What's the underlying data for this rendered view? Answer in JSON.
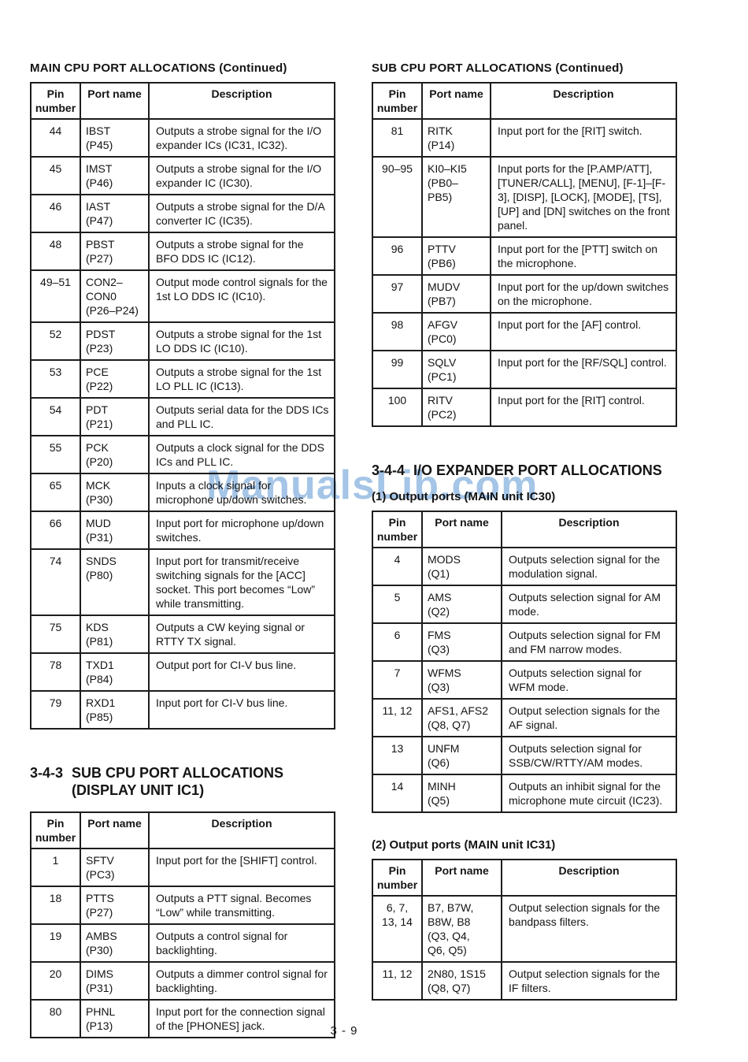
{
  "watermark": {
    "text": "ManualsLib.com",
    "color": "#8fb7e1"
  },
  "footer": {
    "page_number": "3 - 9"
  },
  "table_headers": {
    "pin": "Pin\nnumber",
    "port": "Port name",
    "desc": "Description"
  },
  "left": {
    "main_cpu_title": "MAIN CPU PORT ALLOCATIONS (Continued)",
    "main_cpu_rows": [
      {
        "pin": "44",
        "port": "IBST\n(P45)",
        "desc": "Outputs a strobe signal for the I/O expander ICs (IC31, IC32)."
      },
      {
        "pin": "45",
        "port": "IMST\n(P46)",
        "desc": "Outputs a strobe signal for the I/O expander IC (IC30)."
      },
      {
        "pin": "46",
        "port": "IAST\n(P47)",
        "desc": "Outputs a strobe signal for the D/A converter IC (IC35)."
      },
      {
        "pin": "48",
        "port": "PBST\n(P27)",
        "desc": "Outputs a strobe signal for the BFO DDS IC (IC12)."
      },
      {
        "pin": "49–51",
        "port": "CON2–\nCON0\n(P26–P24)",
        "desc": "Output mode control signals for the 1st LO DDS IC (IC10)."
      },
      {
        "pin": "52",
        "port": "PDST\n(P23)",
        "desc": "Outputs a strobe signal for the 1st LO DDS IC (IC10)."
      },
      {
        "pin": "53",
        "port": "PCE\n(P22)",
        "desc": "Outputs a strobe signal for the 1st LO PLL IC (IC13)."
      },
      {
        "pin": "54",
        "port": "PDT\n(P21)",
        "desc": "Outputs serial data for the DDS ICs and PLL IC."
      },
      {
        "pin": "55",
        "port": "PCK\n(P20)",
        "desc": "Outputs a clock signal for the DDS ICs and PLL IC."
      },
      {
        "pin": "65",
        "port": "MCK\n(P30)",
        "desc": "Inputs a clock signal for microphone up/down switches."
      },
      {
        "pin": "66",
        "port": "MUD\n(P31)",
        "desc": "Input port for microphone up/down switches."
      },
      {
        "pin": "74",
        "port": "SNDS\n(P80)",
        "desc": "Input port for transmit/receive switching signals for the [ACC] socket.  This port becomes “Low” while transmitting."
      },
      {
        "pin": "75",
        "port": "KDS\n(P81)",
        "desc": "Outputs a CW keying signal or RTTY TX signal."
      },
      {
        "pin": "78",
        "port": "TXD1\n(P84)",
        "desc": "Output port for CI-V bus line."
      },
      {
        "pin": "79",
        "port": "RXD1\n(P85)",
        "desc": "Input port for CI-V bus line."
      }
    ],
    "section_343": {
      "num": "3-4-3",
      "title_line1": "SUB CPU PORT ALLOCATIONS",
      "title_line2": "(DISPLAY UNIT IC1)"
    },
    "sub_cpu_display_rows": [
      {
        "pin": "1",
        "port": "SFTV\n(PC3)",
        "desc": "Input port for the [SHIFT] control."
      },
      {
        "pin": "18",
        "port": "PTTS\n(P27)",
        "desc": "Outputs a PTT signal.  Becomes “Low” while transmitting."
      },
      {
        "pin": "19",
        "port": "AMBS\n(P30)",
        "desc": "Outputs a control signal for backlighting."
      },
      {
        "pin": "20",
        "port": "DIMS\n(P31)",
        "desc": "Outputs a dimmer control signal for backlighting."
      },
      {
        "pin": "80",
        "port": "PHNL\n(P13)",
        "desc": "Input port for the connection signal of the [PHONES] jack."
      }
    ]
  },
  "right": {
    "sub_cpu_title": "SUB CPU PORT ALLOCATIONS (Continued)",
    "sub_cpu_rows": [
      {
        "pin": "81",
        "port": "RITK\n(P14)",
        "desc": "Input port for the [RIT] switch."
      },
      {
        "pin": "90–95",
        "port": "KI0–KI5\n(PB0–\nPB5)",
        "desc": "Input ports for the [P.AMP/ATT], [TUNER/CALL], [MENU], [F-1]–[F-3], [DISP], [LOCK], [MODE], [TS], [UP] and [DN] switches on the front panel."
      },
      {
        "pin": "96",
        "port": "PTTV\n(PB6)",
        "desc": "Input port for the [PTT] switch on the microphone."
      },
      {
        "pin": "97",
        "port": "MUDV\n(PB7)",
        "desc": "Input port for the up/down switches on the microphone."
      },
      {
        "pin": "98",
        "port": "AFGV\n(PC0)",
        "desc": "Input port for the [AF] control."
      },
      {
        "pin": "99",
        "port": "SQLV\n(PC1)",
        "desc": "Input port for the [RF/SQL] control."
      },
      {
        "pin": "100",
        "port": "RITV\n(PC2)",
        "desc": "Input port for the [RIT] control."
      }
    ],
    "section_344": {
      "num": "3-4-4",
      "title": "I/O EXPANDER PORT ALLOCATIONS"
    },
    "output_ports_1_title": "(1) Output ports (MAIN unit IC30)",
    "io_expander_rows": [
      {
        "pin": "4",
        "port": "MODS\n(Q1)",
        "desc": "Outputs selection signal for the modulation signal."
      },
      {
        "pin": "5",
        "port": "AMS\n(Q2)",
        "desc": "Outputs selection signal for AM mode."
      },
      {
        "pin": "6",
        "port": "FMS\n(Q3)",
        "desc": "Outputs selection signal for FM and FM narrow modes."
      },
      {
        "pin": "7",
        "port": "WFMS\n(Q3)",
        "desc": "Outputs selection signal for WFM mode."
      },
      {
        "pin": "11, 12",
        "port": "AFS1, AFS2\n(Q8, Q7)",
        "desc": "Output selection signals for the AF signal."
      },
      {
        "pin": "13",
        "port": "UNFM\n(Q6)",
        "desc": "Outputs selection signal for SSB/CW/RTTY/AM modes."
      },
      {
        "pin": "14",
        "port": "MINH\n(Q5)",
        "desc": "Outputs an inhibit signal for the microphone mute circuit (IC23)."
      }
    ],
    "output_ports_2_title": "(2) Output ports (MAIN unit IC31)",
    "main_ic31_rows": [
      {
        "pin": "6, 7,\n13, 14",
        "port": "B7, B7W,\nB8W, B8\n(Q3, Q4,\nQ6, Q5)",
        "desc": "Output selection signals for the bandpass filters."
      },
      {
        "pin": "11, 12",
        "port": "2N80, 1S15\n(Q8, Q7)",
        "desc": "Output selection signals for the IF filters."
      }
    ]
  }
}
